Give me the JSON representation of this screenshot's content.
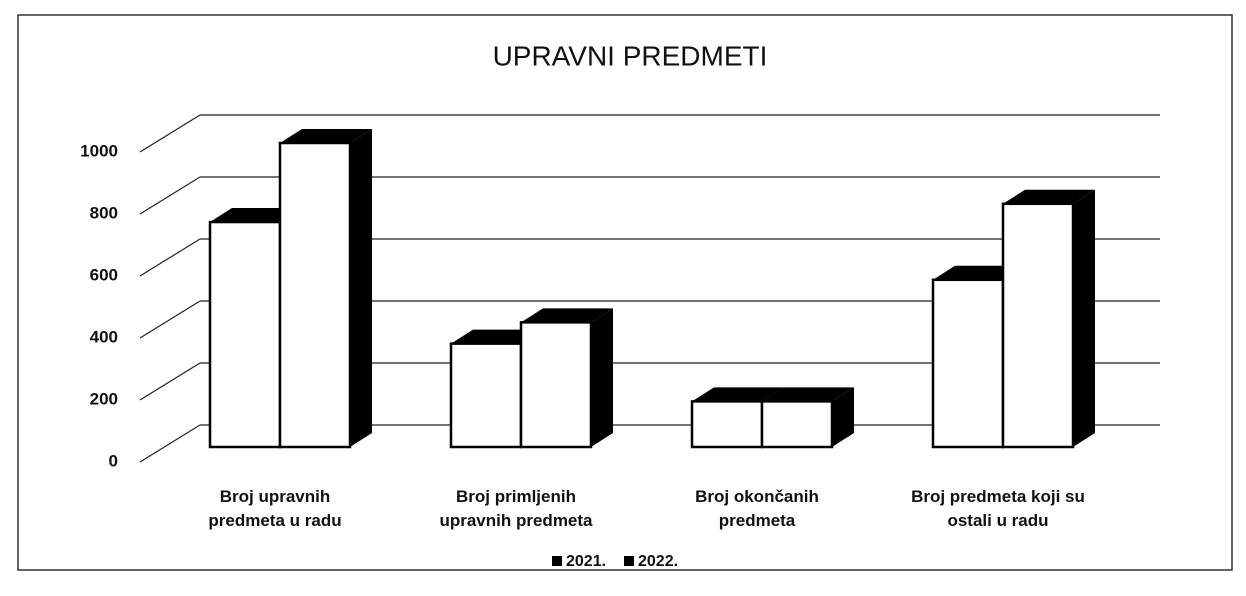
{
  "chart_data": {
    "type": "bar3d",
    "title": "UPRAVNI PREDMETI",
    "categories": [
      "Broj upravnih predmeta u radu",
      "Broj primljenih upravnih predmeta",
      "Broj okončanih predmeta",
      "Broj predmeta koji su ostali u radu"
    ],
    "series": [
      {
        "name": "2021.",
        "color": "#ffffff",
        "values": [
          740,
          340,
          150,
          550
        ]
      },
      {
        "name": "2022.",
        "color": "#ffffff",
        "values": [
          1000,
          410,
          150,
          800
        ]
      }
    ],
    "ylim": [
      0,
      1000
    ],
    "yticks": [
      0,
      200,
      400,
      600,
      800,
      1000
    ],
    "grid": true,
    "legend": "bottom"
  }
}
